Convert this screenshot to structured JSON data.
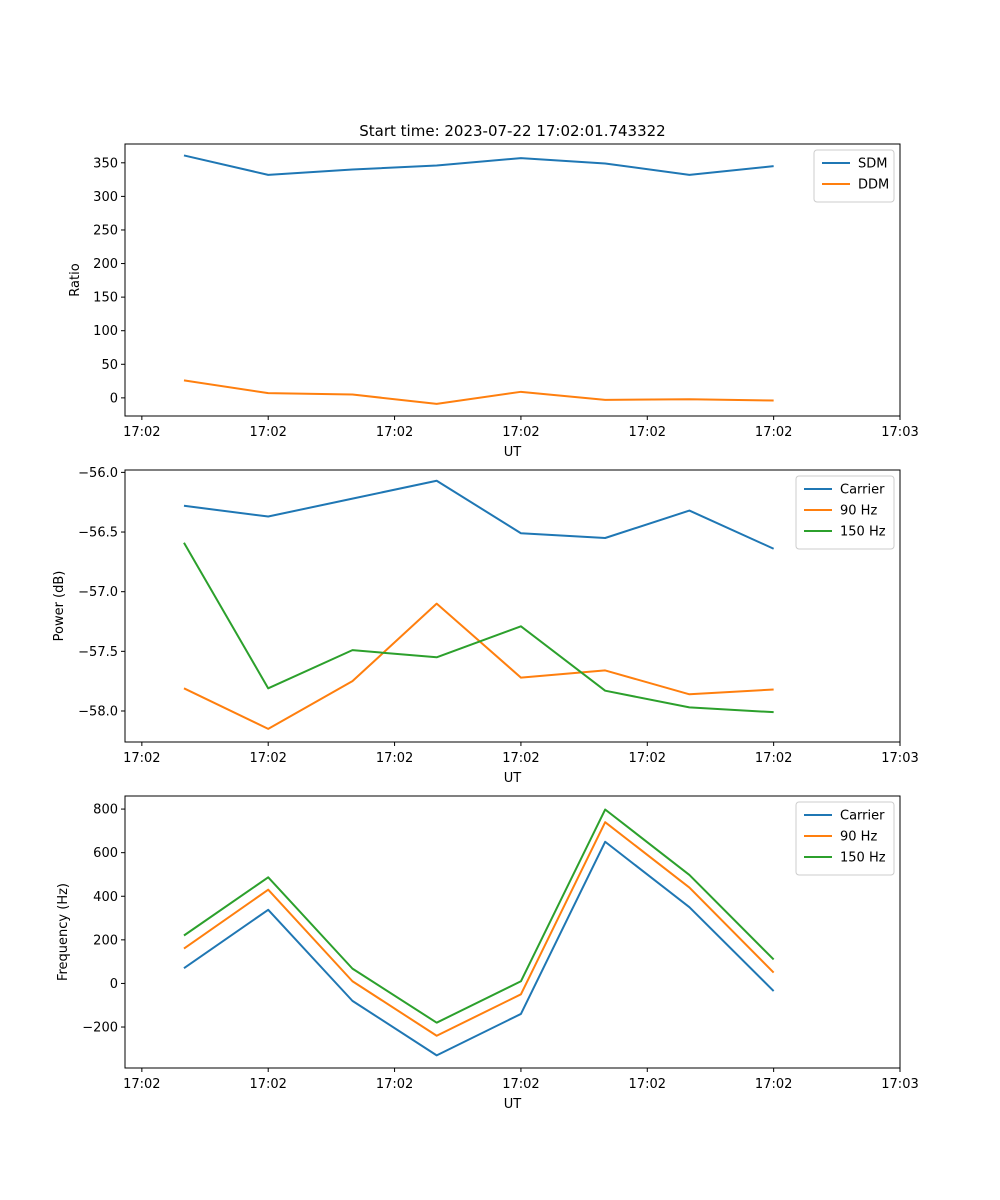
{
  "figure_title": "Start time: 2023-07-22 17:02:01.743322",
  "colors": {
    "blue": "#1f77b4",
    "orange": "#ff7f0e",
    "green": "#2ca02c",
    "axis": "#000000",
    "legend_border": "#cccccc"
  },
  "chart_data": [
    {
      "id": "ratio",
      "type": "line",
      "title": "Start time: 2023-07-22 17:02:01.743322",
      "xlabel": "UT",
      "ylabel": "Ratio",
      "x": [
        0.5,
        1.5,
        2.5,
        3.5,
        4.5,
        5.5,
        6.5,
        7.5
      ],
      "xlim": [
        -0.2,
        9.0
      ],
      "xticks": [
        0,
        1.5,
        3,
        4.5,
        6,
        7.5,
        9
      ],
      "xtick_labels": [
        "17:02",
        "17:02",
        "17:02",
        "17:02",
        "17:02",
        "17:02",
        "17:03"
      ],
      "ylim": [
        -27,
        378
      ],
      "yticks": [
        0,
        50,
        100,
        150,
        200,
        250,
        300,
        350
      ],
      "ytick_labels": [
        "0",
        "50",
        "100",
        "150",
        "200",
        "250",
        "300",
        "350"
      ],
      "legend": "top-right",
      "series": [
        {
          "name": "SDM",
          "color": "#1f77b4",
          "values": [
            361,
            332,
            340,
            346,
            357,
            349,
            332,
            345
          ]
        },
        {
          "name": "DDM",
          "color": "#ff7f0e",
          "values": [
            26,
            7,
            5,
            -9,
            9,
            -3,
            -2,
            -4
          ]
        }
      ]
    },
    {
      "id": "power",
      "type": "line",
      "title": "",
      "xlabel": "UT",
      "ylabel": "Power (dB)",
      "x": [
        0.5,
        1.5,
        2.5,
        3.5,
        4.5,
        5.5,
        6.5,
        7.5
      ],
      "xlim": [
        -0.2,
        9.0
      ],
      "xticks": [
        0,
        1.5,
        3,
        4.5,
        6,
        7.5,
        9
      ],
      "xtick_labels": [
        "17:02",
        "17:02",
        "17:02",
        "17:02",
        "17:02",
        "17:02",
        "17:03"
      ],
      "ylim": [
        -58.26,
        -55.98
      ],
      "yticks": [
        -58.0,
        -57.5,
        -57.0,
        -56.5,
        -56.0
      ],
      "ytick_labels": [
        "−58.0",
        "−57.5",
        "−57.0",
        "−56.5",
        "−56.0"
      ],
      "legend": "top-right",
      "series": [
        {
          "name": "Carrier",
          "color": "#1f77b4",
          "values": [
            -56.28,
            -56.37,
            -56.22,
            -56.07,
            -56.51,
            -56.55,
            -56.32,
            -56.64
          ]
        },
        {
          "name": "90 Hz",
          "color": "#ff7f0e",
          "values": [
            -57.81,
            -58.15,
            -57.75,
            -57.1,
            -57.72,
            -57.66,
            -57.86,
            -57.82
          ]
        },
        {
          "name": "150 Hz",
          "color": "#2ca02c",
          "values": [
            -56.59,
            -57.81,
            -57.49,
            -57.55,
            -57.29,
            -57.83,
            -57.97,
            -58.01
          ]
        }
      ]
    },
    {
      "id": "frequency",
      "type": "line",
      "title": "",
      "xlabel": "UT",
      "ylabel": "Frequency (Hz)",
      "x": [
        0.5,
        1.5,
        2.5,
        3.5,
        4.5,
        5.5,
        6.5,
        7.5
      ],
      "xlim": [
        -0.2,
        9.0
      ],
      "xticks": [
        0,
        1.5,
        3,
        4.5,
        6,
        7.5,
        9
      ],
      "xtick_labels": [
        "17:02",
        "17:02",
        "17:02",
        "17:02",
        "17:02",
        "17:02",
        "17:03"
      ],
      "ylim": [
        -388,
        860
      ],
      "yticks": [
        -200,
        0,
        200,
        400,
        600,
        800
      ],
      "ytick_labels": [
        "−200",
        "0",
        "200",
        "400",
        "600",
        "800"
      ],
      "legend": "top-right",
      "series": [
        {
          "name": "Carrier",
          "color": "#1f77b4",
          "values": [
            70,
            338,
            -80,
            -330,
            -140,
            650,
            350,
            -35
          ]
        },
        {
          "name": "90 Hz",
          "color": "#ff7f0e",
          "values": [
            160,
            430,
            10,
            -240,
            -50,
            740,
            440,
            50
          ]
        },
        {
          "name": "150 Hz",
          "color": "#2ca02c",
          "values": [
            220,
            487,
            68,
            -180,
            10,
            798,
            498,
            110
          ]
        }
      ]
    }
  ]
}
